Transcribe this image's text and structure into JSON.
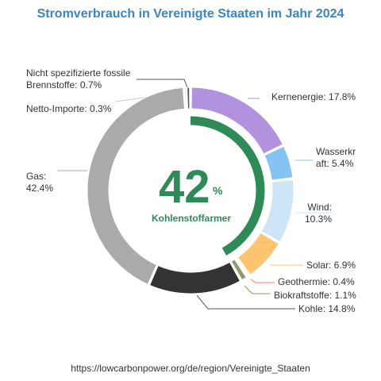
{
  "chart_data": {
    "type": "pie",
    "title": "Stromverbrauch in Vereinigte Staaten im Jahr 2024",
    "center": {
      "value": "42",
      "unit": "%",
      "label": "Kohlenstoffarmer",
      "fraction": 0.42
    },
    "source": "https://lowcarbonpower.org/de/region/Vereinigte_Staaten",
    "slices": [
      {
        "name": "Kernenergie",
        "value": 17.8,
        "label_lines": [
          "Kernenergie: 17.8%"
        ],
        "color": "#b291de"
      },
      {
        "name": "Wasserkraft",
        "value": 5.4,
        "label_lines": [
          "Wasserkr",
          "aft: 5.4%"
        ],
        "color": "#85c4f2"
      },
      {
        "name": "Wind",
        "value": 10.3,
        "label_lines": [
          "Wind:",
          "10.3%"
        ],
        "color": "#cde5f6"
      },
      {
        "name": "Solar",
        "value": 6.9,
        "label_lines": [
          "Solar: 6.9%"
        ],
        "color": "#ffc46f"
      },
      {
        "name": "Geothermie",
        "value": 0.4,
        "label_lines": [
          "Geothermie: 0.4%"
        ],
        "color": "#e8806c"
      },
      {
        "name": "Biokraftstoffe",
        "value": 1.1,
        "label_lines": [
          "Biokraftstoffe: 1.1%"
        ],
        "color": "#8f9a6a"
      },
      {
        "name": "Kohle",
        "value": 14.8,
        "label_lines": [
          "Kohle: 14.8%"
        ],
        "color": "#333333"
      },
      {
        "name": "Gas",
        "value": 42.4,
        "label_lines": [
          "Gas:",
          "42.4%"
        ],
        "color": "#aaaaaa"
      },
      {
        "name": "Netto-Importe",
        "value": 0.3,
        "label_lines": [
          "Netto-Importe: 0.3%"
        ],
        "color": "#cccccc"
      },
      {
        "name": "Nicht spezifizierte fossile Brennstoffe",
        "value": 0.7,
        "label_lines": [
          "Nicht spezifizierte fossile",
          "Brennstoffe: 0.7%"
        ],
        "color": "#555555"
      }
    ]
  }
}
